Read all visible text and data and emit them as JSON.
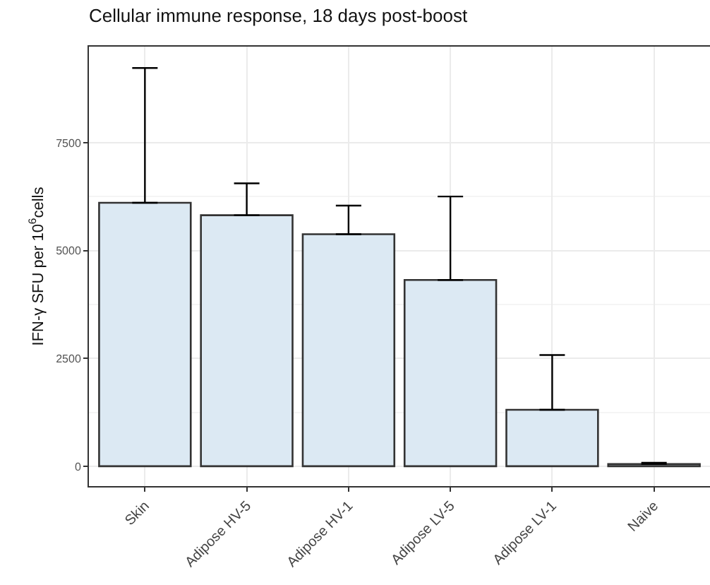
{
  "chart_data": {
    "type": "bar",
    "title": "Cellular immune response, 18 days post-boost",
    "ylabel": "IFN-γ SFU per 10$^{6}$cells",
    "categories": [
      "Skin",
      "Adipose HV-5",
      "Adipose HV-1",
      "Adipose LV-5",
      "Adipose LV-1",
      "Naive"
    ],
    "values": [
      6110,
      5820,
      5380,
      4320,
      1310,
      50
    ],
    "errors": [
      [
        6110,
        9235
      ],
      [
        5820,
        6560
      ],
      [
        5380,
        6045
      ],
      [
        4320,
        6255
      ],
      [
        1310,
        2580
      ],
      [
        50,
        80
      ]
    ],
    "color": "#dce9f3",
    "ylim": [
      -460,
      9730
    ],
    "yticks": [
      0,
      2500,
      5000,
      7500
    ],
    "grid": true
  }
}
